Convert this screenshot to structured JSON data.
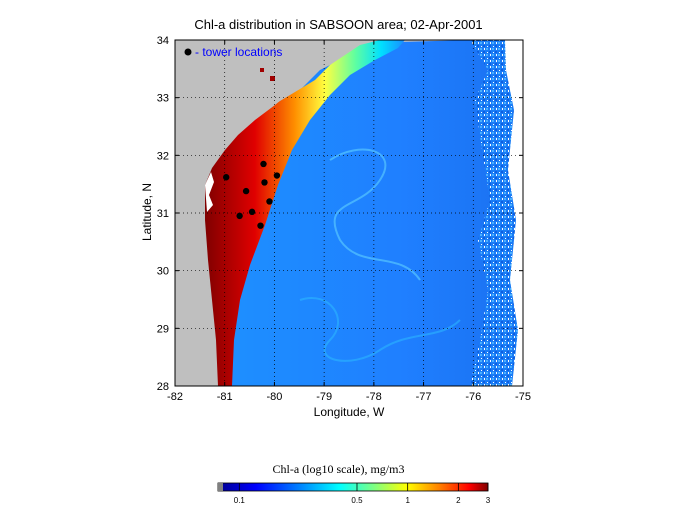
{
  "figure": {
    "title": "Chl-a distribution in SABSOON area; 02-Apr-2001",
    "xlabel": "Longitude, W",
    "ylabel": "Latitude, N",
    "xlim": [
      -82,
      -75
    ],
    "ylim": [
      28,
      34
    ],
    "xticks": [
      "-82",
      "-81",
      "-80",
      "-79",
      "-78",
      "-77",
      "-76",
      "-75"
    ],
    "yticks": [
      "28",
      "29",
      "30",
      "31",
      "32",
      "33",
      "34"
    ],
    "grid": "dotted",
    "land_color": "#bfbfbf",
    "legend": {
      "label": "- tower locations",
      "color": "#0000ff",
      "placement": "top-left"
    }
  },
  "towers": [
    {
      "lon": -80.97,
      "lat": 31.62
    },
    {
      "lon": -80.22,
      "lat": 31.85
    },
    {
      "lon": -79.95,
      "lat": 31.65
    },
    {
      "lon": -80.2,
      "lat": 31.53
    },
    {
      "lon": -80.57,
      "lat": 31.38
    },
    {
      "lon": -80.1,
      "lat": 31.2
    },
    {
      "lon": -80.45,
      "lat": 31.02
    },
    {
      "lon": -80.7,
      "lat": 30.95
    },
    {
      "lon": -80.28,
      "lat": 30.78
    }
  ],
  "colorbar": {
    "title": "Chl-a (log10 scale), mg/m3",
    "range": [
      0.08,
      3
    ],
    "scale": "log",
    "tick_labels": [
      "0.1",
      "0.5",
      "1",
      "2",
      "3"
    ],
    "colormap": [
      "#808080",
      "#00008f",
      "#0000ff",
      "#0080ff",
      "#00ffff",
      "#80ff80",
      "#ffff00",
      "#ff8000",
      "#ff0000",
      "#800000"
    ]
  }
}
